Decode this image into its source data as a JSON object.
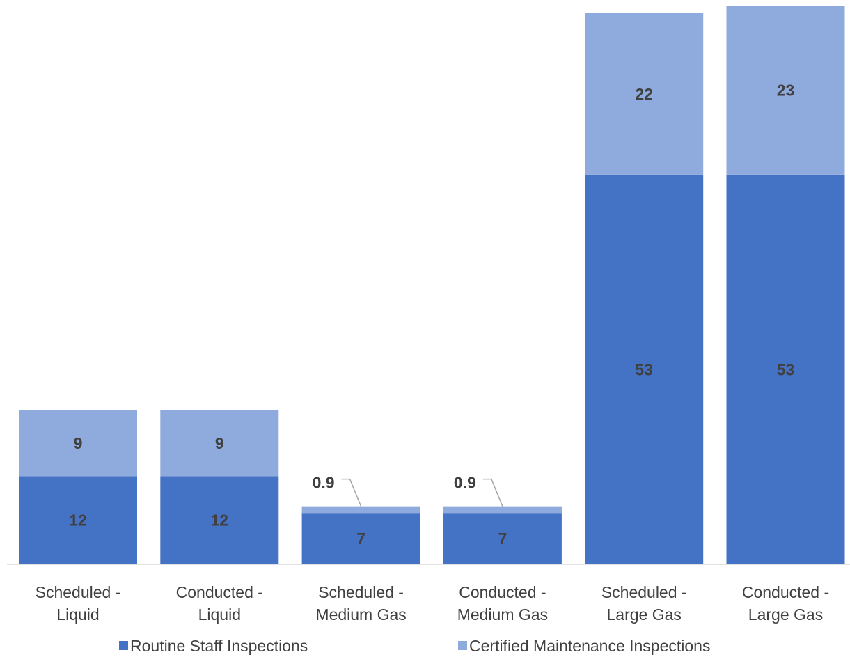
{
  "chart_data": {
    "type": "bar",
    "stacked": true,
    "categories": [
      [
        "Scheduled -",
        "Liquid"
      ],
      [
        "Conducted -",
        "Liquid"
      ],
      [
        "Scheduled -",
        "Medium Gas"
      ],
      [
        "Conducted -",
        "Medium Gas"
      ],
      [
        "Scheduled -",
        "Large Gas"
      ],
      [
        "Conducted -",
        "Large Gas"
      ]
    ],
    "series": [
      {
        "name": "Routine Staff Inspections",
        "color": "#4472C4",
        "values": [
          12,
          12,
          7,
          7,
          53,
          53
        ],
        "labels": [
          "12",
          "12",
          "7",
          "7",
          "53",
          "53"
        ]
      },
      {
        "name": "Certified Maintenance Inspections",
        "color": "#8FAADC",
        "values": [
          9,
          9,
          0.9,
          0.9,
          22,
          23
        ],
        "labels": [
          "9",
          "9",
          "0.9",
          "0.9",
          "22",
          "23"
        ]
      }
    ],
    "ylim": [
      0,
      76
    ],
    "legend_position": "bottom",
    "grid": false
  }
}
